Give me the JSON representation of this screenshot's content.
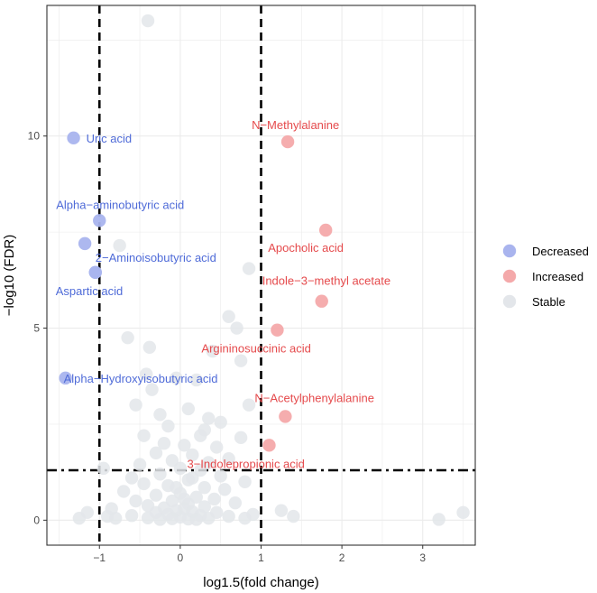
{
  "chart_data": {
    "type": "scatter",
    "title": "",
    "xlabel": "log1.5(fold change)",
    "ylabel": "−log10 (FDR)",
    "xlim": [
      -1.65,
      3.65
    ],
    "ylim": [
      -0.65,
      13.4
    ],
    "x_ticks": [
      -1,
      0,
      1,
      2,
      3
    ],
    "x_tick_labels": [
      "−1",
      "0",
      "1",
      "2",
      "3"
    ],
    "y_ticks": [
      0,
      5,
      10
    ],
    "y_tick_labels": [
      "0",
      "5",
      "10"
    ],
    "grid": true,
    "thresholds": {
      "x": [
        -1,
        1
      ],
      "y": 1.3
    },
    "colors": {
      "Decreased": "#a9b4ee",
      "Increased": "#f4a9aa",
      "Stable": "#e3e6ea",
      "Decreased_label": "#4f6bd8",
      "Increased_label": "#e54a4c",
      "panel_border": "#333333",
      "grid": "#ebebeb",
      "threshold": "#000000"
    },
    "legend": {
      "position": "right",
      "entries": [
        "Decreased",
        "Increased",
        "Stable"
      ]
    },
    "series": [
      {
        "name": "Decreased",
        "points": [
          {
            "x": -1.32,
            "y": 9.95,
            "label": "Uric acid"
          },
          {
            "x": -1.0,
            "y": 7.8,
            "label": "Alpha−aminobutyric acid"
          },
          {
            "x": -1.18,
            "y": 7.2,
            "label": ""
          },
          {
            "x": -1.05,
            "y": 6.45,
            "label": "2−Aminoisobutyric acid"
          },
          {
            "x": -1.05,
            "y": 6.45,
            "label": "Aspartic acid"
          },
          {
            "x": -1.42,
            "y": 3.7,
            "label": "Alpha−Hydroxyisobutyric acid"
          }
        ]
      },
      {
        "name": "Increased",
        "points": [
          {
            "x": 1.33,
            "y": 9.85,
            "label": "N−Methylalanine"
          },
          {
            "x": 1.8,
            "y": 7.55,
            "label": "Apocholic acid"
          },
          {
            "x": 1.75,
            "y": 5.7,
            "label": "Indole−3−methyl acetate"
          },
          {
            "x": 1.2,
            "y": 4.95,
            "label": "Argininosuccinic acid"
          },
          {
            "x": 1.3,
            "y": 2.7,
            "label": "N−Acetylphenylalanine"
          },
          {
            "x": 1.1,
            "y": 1.95,
            "label": "3−Indolepropionic acid"
          }
        ]
      },
      {
        "name": "Stable",
        "points": [
          {
            "x": -0.4,
            "y": 13.0
          },
          {
            "x": -0.75,
            "y": 7.15
          },
          {
            "x": 0.85,
            "y": 6.55
          },
          {
            "x": 0.6,
            "y": 5.3
          },
          {
            "x": 0.7,
            "y": 5.0
          },
          {
            "x": -0.65,
            "y": 4.75
          },
          {
            "x": -0.38,
            "y": 4.5
          },
          {
            "x": 0.4,
            "y": 4.4
          },
          {
            "x": 0.75,
            "y": 4.15
          },
          {
            "x": -0.42,
            "y": 3.8
          },
          {
            "x": -0.05,
            "y": 3.7
          },
          {
            "x": 0.2,
            "y": 3.65
          },
          {
            "x": -0.35,
            "y": 3.4
          },
          {
            "x": 0.85,
            "y": 3.0
          },
          {
            "x": -0.55,
            "y": 3.0
          },
          {
            "x": 0.1,
            "y": 2.9
          },
          {
            "x": -0.25,
            "y": 2.75
          },
          {
            "x": 0.35,
            "y": 2.65
          },
          {
            "x": 0.5,
            "y": 2.55
          },
          {
            "x": -0.15,
            "y": 2.45
          },
          {
            "x": 0.3,
            "y": 2.35
          },
          {
            "x": -0.45,
            "y": 2.2
          },
          {
            "x": 0.25,
            "y": 2.2
          },
          {
            "x": 0.75,
            "y": 2.15
          },
          {
            "x": -0.2,
            "y": 2.0
          },
          {
            "x": 0.05,
            "y": 1.95
          },
          {
            "x": 0.45,
            "y": 1.9
          },
          {
            "x": -0.3,
            "y": 1.75
          },
          {
            "x": 0.15,
            "y": 1.7
          },
          {
            "x": -0.1,
            "y": 1.55
          },
          {
            "x": 0.35,
            "y": 1.5
          },
          {
            "x": 0.6,
            "y": 1.6
          },
          {
            "x": -0.5,
            "y": 1.45
          },
          {
            "x": 0.0,
            "y": 1.35
          },
          {
            "x": -0.95,
            "y": 1.35
          },
          {
            "x": 0.25,
            "y": 1.3
          },
          {
            "x": -0.25,
            "y": 1.2
          },
          {
            "x": 0.5,
            "y": 1.15
          },
          {
            "x": -0.6,
            "y": 1.1
          },
          {
            "x": 0.1,
            "y": 1.05
          },
          {
            "x": 0.8,
            "y": 1.0
          },
          {
            "x": -0.45,
            "y": 0.95
          },
          {
            "x": -0.15,
            "y": 0.9
          },
          {
            "x": 0.3,
            "y": 0.85
          },
          {
            "x": 0.55,
            "y": 0.8
          },
          {
            "x": -0.7,
            "y": 0.75
          },
          {
            "x": 0.0,
            "y": 0.7
          },
          {
            "x": -0.3,
            "y": 0.65
          },
          {
            "x": 0.2,
            "y": 0.6
          },
          {
            "x": 0.42,
            "y": 0.55
          },
          {
            "x": -0.55,
            "y": 0.5
          },
          {
            "x": -0.1,
            "y": 0.5
          },
          {
            "x": 0.68,
            "y": 0.45
          },
          {
            "x": 0.1,
            "y": 0.42
          },
          {
            "x": -0.4,
            "y": 0.38
          },
          {
            "x": 0.3,
            "y": 0.35
          },
          {
            "x": -0.2,
            "y": 0.32
          },
          {
            "x": 0.05,
            "y": 0.3
          },
          {
            "x": -0.05,
            "y": 0.25
          },
          {
            "x": 0.15,
            "y": 0.22
          },
          {
            "x": -0.3,
            "y": 0.2
          },
          {
            "x": 0.45,
            "y": 0.2
          },
          {
            "x": -0.15,
            "y": 0.15
          },
          {
            "x": 0.25,
            "y": 0.12
          },
          {
            "x": -0.6,
            "y": 0.12
          },
          {
            "x": 0.6,
            "y": 0.1
          },
          {
            "x": 0.0,
            "y": 0.08
          },
          {
            "x": -0.4,
            "y": 0.06
          },
          {
            "x": 0.35,
            "y": 0.05
          },
          {
            "x": -0.1,
            "y": 0.04
          },
          {
            "x": 0.1,
            "y": 0.03
          },
          {
            "x": -0.25,
            "y": 0.02
          },
          {
            "x": 0.2,
            "y": 0.02
          },
          {
            "x": 0.8,
            "y": 0.05
          },
          {
            "x": -0.8,
            "y": 0.05
          },
          {
            "x": 0.9,
            "y": 0.15
          },
          {
            "x": -0.9,
            "y": 0.1
          },
          {
            "x": -1.15,
            "y": 0.2
          },
          {
            "x": -1.25,
            "y": 0.05
          },
          {
            "x": -0.85,
            "y": 0.3
          },
          {
            "x": 1.4,
            "y": 0.1
          },
          {
            "x": 1.25,
            "y": 0.25
          },
          {
            "x": 3.2,
            "y": 0.02
          },
          {
            "x": 3.5,
            "y": 0.2
          },
          {
            "x": 0.05,
            "y": 0.55
          },
          {
            "x": -0.05,
            "y": 0.85
          },
          {
            "x": 0.15,
            "y": 1.1
          }
        ]
      }
    ]
  }
}
